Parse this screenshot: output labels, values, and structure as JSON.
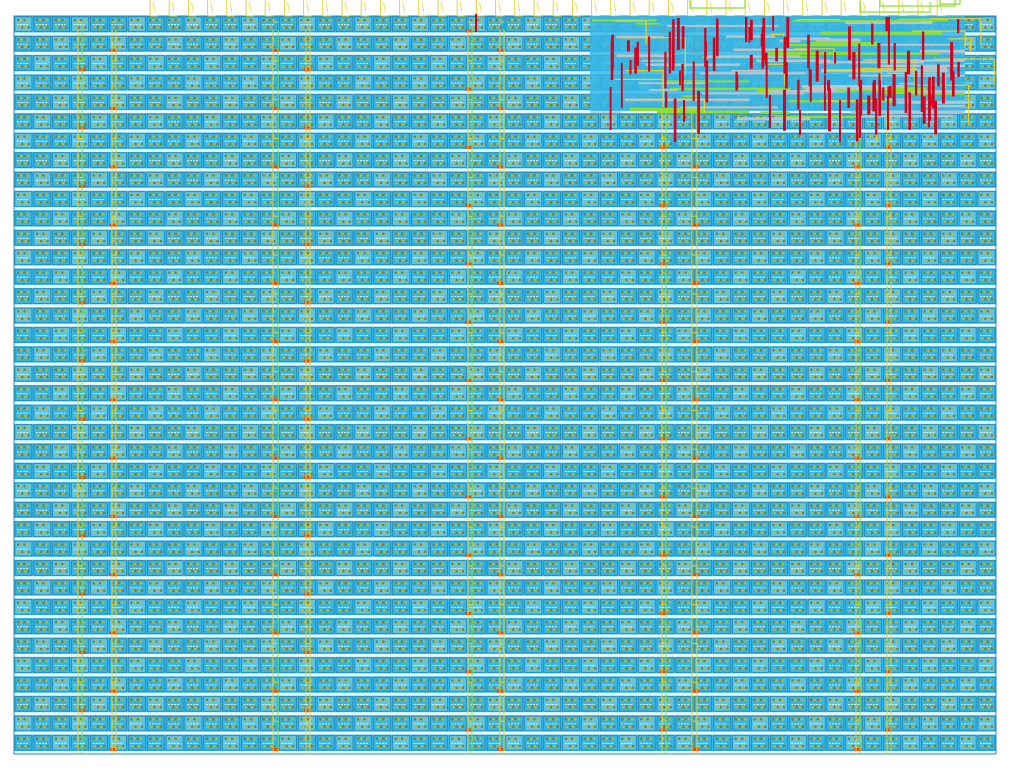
{
  "layout_view": {
    "grid": {
      "columns": 52,
      "rows": 38
    },
    "cell_label": "",
    "colors": {
      "background": "#ffffff",
      "cell_fill": "#36b6e6",
      "cell_fill_alt": "#5ac6ee",
      "cell_outline": "#1b6f8f",
      "pin": "#d4b418",
      "pin_dark": "#8a7a10",
      "route_yellow": "#e6d22a",
      "route_green": "#8ee02a",
      "route_red": "#d8001a",
      "route_grey": "#b8c4c8"
    },
    "overlay": {
      "congested_region": "top-right"
    }
  }
}
